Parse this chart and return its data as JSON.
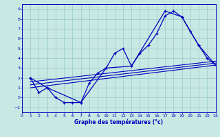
{
  "xlabel": "Graphe des températures (°c)",
  "bg_color": "#c8e8e4",
  "grid_color": "#9ecece",
  "line_color": "#0000bb",
  "xlim_min": 0,
  "xlim_max": 23,
  "ylim_min": -1.5,
  "ylim_max": 9.5,
  "xticks": [
    0,
    1,
    2,
    3,
    4,
    5,
    6,
    7,
    8,
    9,
    10,
    11,
    12,
    13,
    14,
    15,
    16,
    17,
    18,
    19,
    20,
    21,
    22,
    23
  ],
  "yticks": [
    -1,
    0,
    1,
    2,
    3,
    4,
    5,
    6,
    7,
    8,
    9
  ],
  "curve_main_x": [
    1,
    2,
    3,
    4,
    5,
    6,
    7,
    8,
    9,
    10,
    11,
    12,
    13,
    14,
    15,
    16,
    17,
    18,
    19,
    20,
    21,
    22,
    23
  ],
  "curve_main_y": [
    2.0,
    0.5,
    1.0,
    0.0,
    -0.5,
    -0.5,
    -0.5,
    1.5,
    2.5,
    3.0,
    4.5,
    5.0,
    3.2,
    4.5,
    5.3,
    6.5,
    8.3,
    8.8,
    8.2,
    6.7,
    5.3,
    4.0,
    3.3
  ],
  "curve_hull_x": [
    1,
    3,
    7,
    10,
    13,
    17,
    19,
    21,
    23
  ],
  "curve_hull_y": [
    2.0,
    1.0,
    -0.5,
    3.0,
    3.2,
    8.8,
    8.2,
    5.3,
    3.3
  ],
  "line1_x": [
    1,
    23
  ],
  "line1_y": [
    1.0,
    3.3
  ],
  "line2_x": [
    1,
    23
  ],
  "line2_y": [
    1.3,
    3.5
  ],
  "line3_x": [
    1,
    23
  ],
  "line3_y": [
    1.6,
    3.7
  ]
}
